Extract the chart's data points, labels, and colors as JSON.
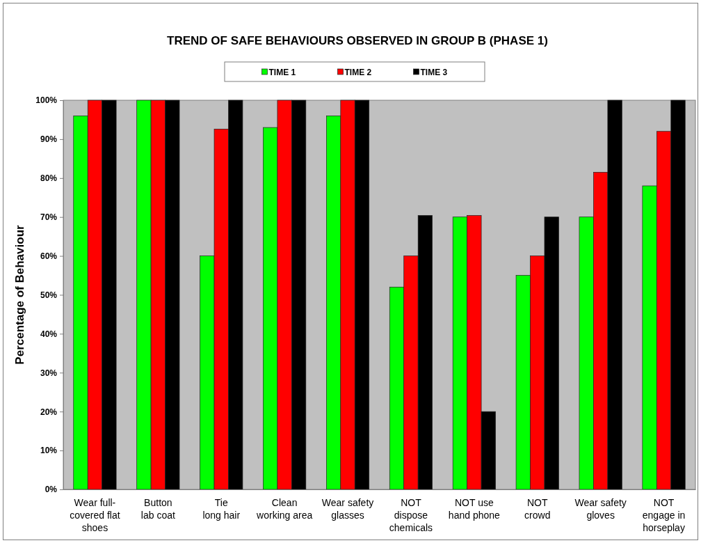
{
  "chart_data": {
    "type": "bar",
    "title": "TREND OF SAFE BEHAVIOURS OBSERVED IN GROUP B (PHASE 1)",
    "ylabel": "Percentage of Behaviour",
    "categories": [
      "Wear full-\ncovered flat\nshoes",
      "Button\nlab coat",
      "Tie\nlong hair",
      "Clean\nworking area",
      "Wear safety\nglasses",
      "NOT\ndispose\nchemicals",
      "NOT use\nhand phone",
      "NOT\ncrowd",
      "Wear safety\ngloves",
      "NOT\nengage in\nhorseplay"
    ],
    "series": [
      {
        "name": "TIME 1",
        "color": "#00ff00",
        "values": [
          96,
          100,
          60,
          93,
          96,
          52,
          70,
          55,
          70,
          78
        ]
      },
      {
        "name": "TIME 2",
        "color": "#ff0000",
        "values": [
          100,
          100,
          92.6,
          100,
          100,
          60,
          70.4,
          60,
          81.5,
          92
        ]
      },
      {
        "name": "TIME 3",
        "color": "#000000",
        "values": [
          100,
          100,
          100,
          100,
          100,
          70.4,
          20,
          70,
          100,
          100
        ]
      }
    ],
    "ylim": [
      0,
      100
    ],
    "yticks": [
      {
        "value": 0,
        "label": "0%"
      },
      {
        "value": 10,
        "label": "10%"
      },
      {
        "value": 20,
        "label": "20%"
      },
      {
        "value": 30,
        "label": "30%"
      },
      {
        "value": 40,
        "label": "40%"
      },
      {
        "value": 50,
        "label": "50%"
      },
      {
        "value": 60,
        "label": "60%"
      },
      {
        "value": 70,
        "label": "70%"
      },
      {
        "value": 80,
        "label": "80%"
      },
      {
        "value": 90,
        "label": "90%"
      },
      {
        "value": 100,
        "label": "100%"
      }
    ],
    "grid": false,
    "legend": "top"
  }
}
